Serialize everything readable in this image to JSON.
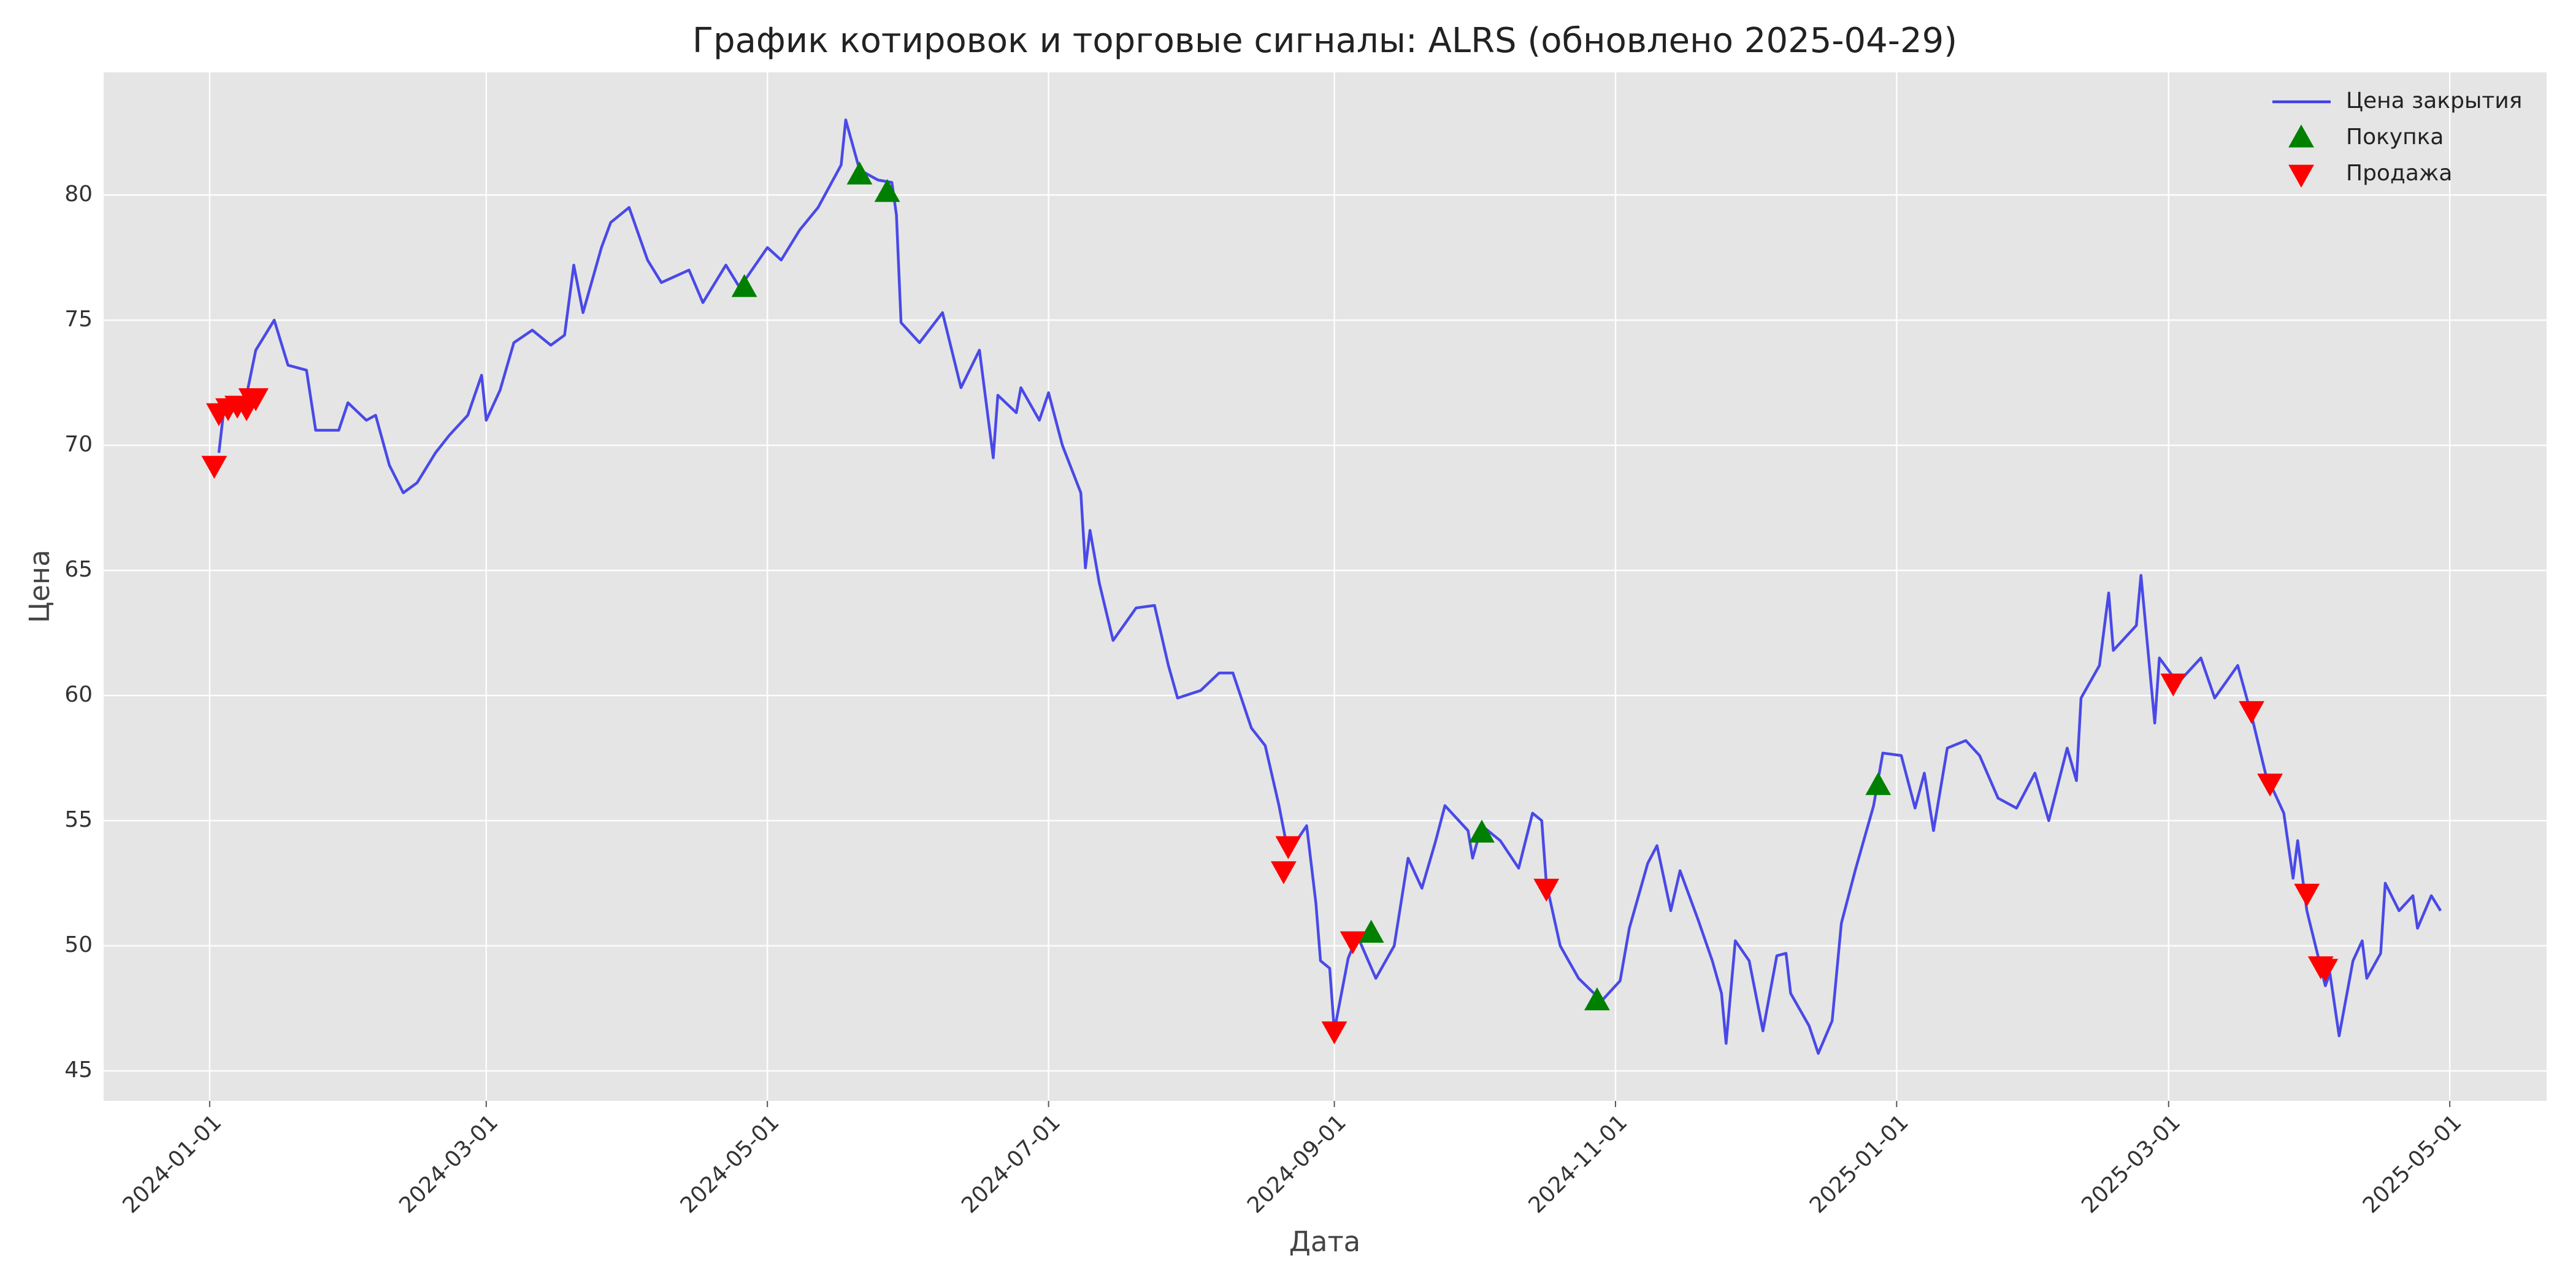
{
  "chart_data": {
    "type": "line",
    "title": "График котировок и торговые сигналы: ALRS (обновлено 2025-04-29)",
    "x_label": "Дата",
    "y_label": "Цена",
    "xlim": [
      "2023-12-09",
      "2025-05-22"
    ],
    "xticks": [
      "2024-01-01",
      "2024-03-01",
      "2024-05-01",
      "2024-07-01",
      "2024-09-01",
      "2024-11-01",
      "2025-01-01",
      "2025-03-01",
      "2025-05-01"
    ],
    "ylim": [
      43.8,
      84.9
    ],
    "yticks": [
      45,
      50,
      55,
      60,
      65,
      70,
      75,
      80
    ],
    "grid": true,
    "legend": "upper right",
    "series": [
      {
        "name": "Цена закрытия",
        "type": "line",
        "color": "#4040e8",
        "x": [
          "2024-01-03",
          "2024-01-04",
          "2024-01-09",
          "2024-01-11",
          "2024-01-15",
          "2024-01-18",
          "2024-01-22",
          "2024-01-24",
          "2024-01-29",
          "2024-01-31",
          "2024-02-04",
          "2024-02-06",
          "2024-02-09",
          "2024-02-12",
          "2024-02-15",
          "2024-02-19",
          "2024-02-22",
          "2024-02-26",
          "2024-02-29",
          "2024-03-01",
          "2024-03-04",
          "2024-03-07",
          "2024-03-11",
          "2024-03-15",
          "2024-03-18",
          "2024-03-20",
          "2024-03-22",
          "2024-03-26",
          "2024-03-28",
          "2024-04-01",
          "2024-04-05",
          "2024-04-08",
          "2024-04-14",
          "2024-04-17",
          "2024-04-22",
          "2024-04-25",
          "2024-05-01",
          "2024-05-04",
          "2024-05-08",
          "2024-05-12",
          "2024-05-17",
          "2024-05-18",
          "2024-05-21",
          "2024-05-25",
          "2024-05-28",
          "2024-05-29",
          "2024-05-30",
          "2024-06-03",
          "2024-06-08",
          "2024-06-12",
          "2024-06-16",
          "2024-06-19",
          "2024-06-20",
          "2024-06-24",
          "2024-06-25",
          "2024-06-29",
          "2024-07-01",
          "2024-07-04",
          "2024-07-08",
          "2024-07-09",
          "2024-07-10",
          "2024-07-12",
          "2024-07-15",
          "2024-07-20",
          "2024-07-24",
          "2024-07-27",
          "2024-07-29",
          "2024-08-03",
          "2024-08-07",
          "2024-08-10",
          "2024-08-14",
          "2024-08-17",
          "2024-08-20",
          "2024-08-22",
          "2024-08-26",
          "2024-08-28",
          "2024-08-29",
          "2024-08-31",
          "2024-09-01",
          "2024-09-04",
          "2024-09-06",
          "2024-09-10",
          "2024-09-14",
          "2024-09-17",
          "2024-09-20",
          "2024-09-23",
          "2024-09-25",
          "2024-09-30",
          "2024-10-01",
          "2024-10-03",
          "2024-10-07",
          "2024-10-11",
          "2024-10-14",
          "2024-10-16",
          "2024-10-17",
          "2024-10-20",
          "2024-10-24",
          "2024-10-29",
          "2024-11-02",
          "2024-11-04",
          "2024-11-08",
          "2024-11-10",
          "2024-11-13",
          "2024-11-15",
          "2024-11-19",
          "2024-11-22",
          "2024-11-24",
          "2024-11-25",
          "2024-11-27",
          "2024-11-30",
          "2024-12-03",
          "2024-12-06",
          "2024-12-08",
          "2024-12-09",
          "2024-12-13",
          "2024-12-15",
          "2024-12-18",
          "2024-12-20",
          "2024-12-23",
          "2024-12-27",
          "2024-12-29",
          "2025-01-02",
          "2025-01-05",
          "2025-01-07",
          "2025-01-09",
          "2025-01-12",
          "2025-01-16",
          "2025-01-19",
          "2025-01-23",
          "2025-01-27",
          "2025-01-31",
          "2025-02-03",
          "2025-02-07",
          "2025-02-09",
          "2025-02-10",
          "2025-02-14",
          "2025-02-16",
          "2025-02-17",
          "2025-02-22",
          "2025-02-23",
          "2025-02-26",
          "2025-02-27",
          "2025-03-03",
          "2025-03-08",
          "2025-03-11",
          "2025-03-16",
          "2025-03-19",
          "2025-03-22",
          "2025-03-26",
          "2025-03-28",
          "2025-03-29",
          "2025-03-31",
          "2025-04-04",
          "2025-04-05",
          "2025-04-07",
          "2025-04-10",
          "2025-04-12",
          "2025-04-13",
          "2025-04-16",
          "2025-04-17",
          "2025-04-20",
          "2025-04-23",
          "2025-04-24",
          "2025-04-27",
          "2025-04-29"
        ],
        "values": [
          69.7,
          71.3,
          72.0,
          73.8,
          75.0,
          73.2,
          73.0,
          70.6,
          70.6,
          71.7,
          71.0,
          71.2,
          69.2,
          68.1,
          68.5,
          69.7,
          70.4,
          71.2,
          72.8,
          71.0,
          72.2,
          74.1,
          74.6,
          74.0,
          74.4,
          77.2,
          75.3,
          77.9,
          78.9,
          79.5,
          77.4,
          76.5,
          77.0,
          75.7,
          77.2,
          76.3,
          77.9,
          77.4,
          78.6,
          79.5,
          81.2,
          83.0,
          81.0,
          80.6,
          80.5,
          79.2,
          74.9,
          74.1,
          75.3,
          72.3,
          73.8,
          69.5,
          72.0,
          71.3,
          72.3,
          71.0,
          72.1,
          70.0,
          68.1,
          65.1,
          66.6,
          64.5,
          62.2,
          63.5,
          63.6,
          61.2,
          59.9,
          60.2,
          60.9,
          60.9,
          58.7,
          58.0,
          55.6,
          53.7,
          54.8,
          51.7,
          49.4,
          49.1,
          46.6,
          49.5,
          50.4,
          48.7,
          50.0,
          53.5,
          52.3,
          54.2,
          55.6,
          54.6,
          53.5,
          54.8,
          54.2,
          53.1,
          55.3,
          55.0,
          52.5,
          50.0,
          48.7,
          47.8,
          48.6,
          50.7,
          53.3,
          54.0,
          51.4,
          53.0,
          51.0,
          49.4,
          48.1,
          46.1,
          50.2,
          49.4,
          46.6,
          49.6,
          49.7,
          48.1,
          46.8,
          45.7,
          47.0,
          50.9,
          53.0,
          55.6,
          57.7,
          57.6,
          55.5,
          56.9,
          54.6,
          57.9,
          58.2,
          57.6,
          55.9,
          55.5,
          56.9,
          55.0,
          57.9,
          56.6,
          59.9,
          61.2,
          64.1,
          61.8,
          62.8,
          64.8,
          58.9,
          61.5,
          60.5,
          61.5,
          59.9,
          61.2,
          59.2,
          56.9,
          55.3,
          52.7,
          54.2,
          51.4,
          48.4,
          48.9,
          46.4,
          49.4,
          50.2,
          48.7,
          49.7,
          52.5,
          51.4,
          52.0,
          50.7,
          52.0,
          51.4
        ]
      },
      {
        "name": "Покупка",
        "type": "scatter",
        "marker": "^",
        "color": "green",
        "x": [
          "2024-04-26",
          "2024-05-21",
          "2024-05-27",
          "2024-09-09",
          "2024-10-03",
          "2024-10-28",
          "2024-12-28"
        ],
        "values": [
          76.3,
          80.8,
          80.1,
          50.5,
          54.5,
          47.8,
          56.4
        ]
      },
      {
        "name": "Продажа",
        "type": "scatter",
        "marker": "v",
        "color": "red",
        "x": [
          "2024-01-02",
          "2024-01-03",
          "2024-01-05",
          "2024-01-07",
          "2024-01-09",
          "2024-01-10",
          "2024-01-11",
          "2024-08-21",
          "2024-08-22",
          "2024-09-01",
          "2024-09-05",
          "2024-10-17",
          "2025-03-02",
          "2025-03-19",
          "2025-03-23",
          "2025-03-31",
          "2025-04-03",
          "2025-04-04"
        ],
        "values": [
          69.2,
          71.3,
          71.5,
          71.6,
          71.5,
          71.9,
          71.9,
          53.0,
          54.0,
          46.6,
          50.2,
          52.3,
          60.5,
          59.4,
          56.5,
          52.1,
          49.2,
          49.1
        ]
      }
    ]
  }
}
